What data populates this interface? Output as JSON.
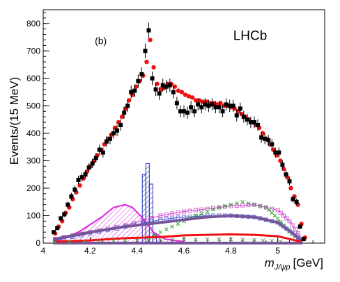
{
  "chart_data": {
    "type": "scatter",
    "panel_label": "(b)",
    "experiment_label": "LHCb",
    "ylabel": "Events/(15 MeV)",
    "xlabel_math": "m",
    "xlabel_sub": "J/ψp",
    "xlabel_unit": "[GeV]",
    "xlim": [
      4.0,
      5.2
    ],
    "ylim": [
      0,
      850
    ],
    "x_ticks": [
      4.0,
      4.2,
      4.4,
      4.6,
      4.8,
      5.0
    ],
    "x_tick_labels": [
      "4",
      "4.2",
      "4.4",
      "4.6",
      "4.8",
      "5"
    ],
    "y_ticks": [
      0,
      100,
      200,
      300,
      400,
      500,
      600,
      700,
      800
    ],
    "y_tick_labels": [
      "0",
      "100",
      "200",
      "300",
      "400",
      "500",
      "600",
      "700",
      "800"
    ],
    "series": [
      {
        "kind": "data",
        "color": "#000000",
        "x": [
          4.045,
          4.06,
          4.075,
          4.09,
          4.105,
          4.12,
          4.135,
          4.15,
          4.165,
          4.18,
          4.195,
          4.21,
          4.225,
          4.24,
          4.255,
          4.27,
          4.285,
          4.3,
          4.315,
          4.33,
          4.345,
          4.36,
          4.375,
          4.39,
          4.405,
          4.42,
          4.435,
          4.45,
          4.465,
          4.48,
          4.495,
          4.51,
          4.525,
          4.54,
          4.555,
          4.57,
          4.585,
          4.6,
          4.615,
          4.63,
          4.645,
          4.66,
          4.675,
          4.69,
          4.705,
          4.72,
          4.735,
          4.75,
          4.765,
          4.78,
          4.795,
          4.81,
          4.825,
          4.84,
          4.855,
          4.87,
          4.885,
          4.9,
          4.915,
          4.93,
          4.945,
          4.96,
          4.975,
          4.99,
          5.005,
          5.02,
          5.035,
          5.05,
          5.065,
          5.08,
          5.095,
          5.11
        ],
        "y": [
          40,
          55,
          90,
          105,
          140,
          170,
          195,
          230,
          240,
          250,
          275,
          290,
          310,
          340,
          330,
          370,
          380,
          400,
          410,
          430,
          475,
          500,
          550,
          555,
          590,
          615,
          700,
          775,
          600,
          560,
          545,
          575,
          570,
          575,
          550,
          510,
          480,
          480,
          475,
          495,
          480,
          505,
          495,
          505,
          500,
          505,
          495,
          495,
          480,
          505,
          500,
          500,
          465,
          490,
          460,
          450,
          440,
          440,
          430,
          385,
          380,
          375,
          360,
          330,
          330,
          285,
          250,
          225,
          160,
          150,
          60,
          15
        ]
      },
      {
        "kind": "fit",
        "color": "#ee1111",
        "x": [
          4.045,
          4.06,
          4.075,
          4.09,
          4.105,
          4.12,
          4.135,
          4.15,
          4.165,
          4.18,
          4.195,
          4.21,
          4.225,
          4.24,
          4.255,
          4.27,
          4.285,
          4.3,
          4.315,
          4.33,
          4.345,
          4.36,
          4.375,
          4.39,
          4.405,
          4.42,
          4.435,
          4.45,
          4.465,
          4.48,
          4.495,
          4.51,
          4.525,
          4.54,
          4.555,
          4.57,
          4.585,
          4.6,
          4.615,
          4.63,
          4.645,
          4.66,
          4.675,
          4.69,
          4.705,
          4.72,
          4.735,
          4.75,
          4.765,
          4.78,
          4.795,
          4.81,
          4.825,
          4.84,
          4.855,
          4.87,
          4.885,
          4.9,
          4.915,
          4.93,
          4.945,
          4.96,
          4.975,
          4.99,
          5.005,
          5.02,
          5.035,
          5.05,
          5.065,
          5.08,
          5.095,
          5.11
        ],
        "y": [
          35,
          60,
          80,
          110,
          130,
          160,
          185,
          210,
          235,
          260,
          280,
          300,
          320,
          340,
          360,
          380,
          395,
          420,
          440,
          460,
          490,
          520,
          540,
          570,
          590,
          610,
          660,
          740,
          640,
          580,
          560,
          565,
          580,
          580,
          570,
          555,
          550,
          540,
          535,
          530,
          520,
          520,
          515,
          515,
          510,
          510,
          505,
          510,
          500,
          500,
          495,
          490,
          480,
          470,
          460,
          450,
          440,
          430,
          420,
          400,
          380,
          360,
          340,
          320,
          300,
          270,
          240,
          200,
          170,
          140,
          70,
          20
        ]
      }
    ],
    "components": [
      {
        "name_visible": false,
        "style": "hatched-histogram",
        "color": "#2233bb",
        "x": [
          4.43,
          4.445,
          4.46,
          4.475
        ],
        "y": [
          250,
          290,
          215,
          30
        ]
      },
      {
        "name_visible": false,
        "style": "hatched-curve",
        "color": "#dd22dd",
        "x": [
          4.05,
          4.15,
          4.25,
          4.3,
          4.35,
          4.38,
          4.42,
          4.47,
          4.52,
          4.6
        ],
        "y": [
          5,
          40,
          95,
          130,
          140,
          130,
          95,
          40,
          15,
          5
        ]
      },
      {
        "name_visible": false,
        "style": "open-squares",
        "color": "#cc44cc",
        "x": [
          4.05,
          4.2,
          4.35,
          4.5,
          4.6,
          4.7,
          4.8,
          4.9,
          5.0,
          5.05,
          5.1
        ],
        "y": [
          15,
          40,
          65,
          100,
          115,
          125,
          135,
          140,
          120,
          80,
          20
        ]
      },
      {
        "name_visible": false,
        "style": "open-squares",
        "color": "#4455cc",
        "x": [
          4.05,
          4.2,
          4.35,
          4.5,
          4.6,
          4.7,
          4.8,
          4.9,
          5.0,
          5.05,
          5.1
        ],
        "y": [
          10,
          35,
          60,
          85,
          95,
          100,
          100,
          95,
          75,
          45,
          10
        ]
      },
      {
        "name_visible": false,
        "style": "crosses",
        "color": "#22aa22",
        "x": [
          4.45,
          4.55,
          4.65,
          4.75,
          4.85,
          4.95,
          5.0,
          5.05,
          5.1
        ],
        "y": [
          20,
          60,
          100,
          130,
          150,
          130,
          90,
          40,
          10
        ]
      },
      {
        "name_visible": false,
        "style": "band",
        "color": "#775599",
        "x": [
          4.05,
          4.2,
          4.35,
          4.5,
          4.6,
          4.7,
          4.8,
          4.9,
          5.0,
          5.05,
          5.1
        ],
        "y": [
          15,
          40,
          60,
          75,
          85,
          95,
          100,
          95,
          75,
          45,
          10
        ]
      },
      {
        "name_visible": false,
        "style": "line",
        "color": "#ee1111",
        "x": [
          4.05,
          4.2,
          4.35,
          4.5,
          4.6,
          4.7,
          4.8,
          4.9,
          5.0,
          5.05,
          5.1
        ],
        "y": [
          5,
          10,
          18,
          22,
          28,
          30,
          32,
          30,
          25,
          15,
          5
        ]
      },
      {
        "name_visible": false,
        "style": "crosses",
        "color": "#559955",
        "x": [
          4.05,
          4.3,
          4.5,
          4.7,
          4.9,
          5.05
        ],
        "y": [
          3,
          8,
          12,
          15,
          12,
          4
        ]
      }
    ]
  }
}
